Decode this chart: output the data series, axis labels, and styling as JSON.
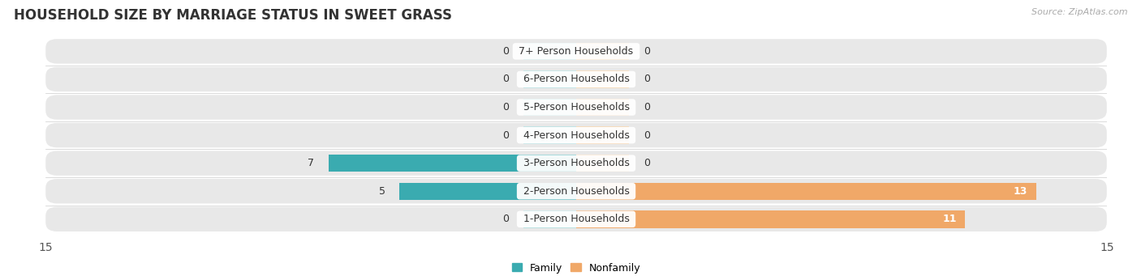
{
  "title": "HOUSEHOLD SIZE BY MARRIAGE STATUS IN SWEET GRASS",
  "source": "Source: ZipAtlas.com",
  "categories": [
    "7+ Person Households",
    "6-Person Households",
    "5-Person Households",
    "4-Person Households",
    "3-Person Households",
    "2-Person Households",
    "1-Person Households"
  ],
  "family_values": [
    0,
    0,
    0,
    0,
    7,
    5,
    0
  ],
  "nonfamily_values": [
    0,
    0,
    0,
    0,
    0,
    13,
    11
  ],
  "family_color": "#3aabb0",
  "nonfamily_color": "#f0a868",
  "family_color_light": "#b8dfe0",
  "nonfamily_color_light": "#f5d5b0",
  "xlim": 15,
  "bar_background": "#e8e8e8",
  "stub_size": 1.5,
  "title_fontsize": 12,
  "label_fontsize": 9,
  "tick_fontsize": 10
}
